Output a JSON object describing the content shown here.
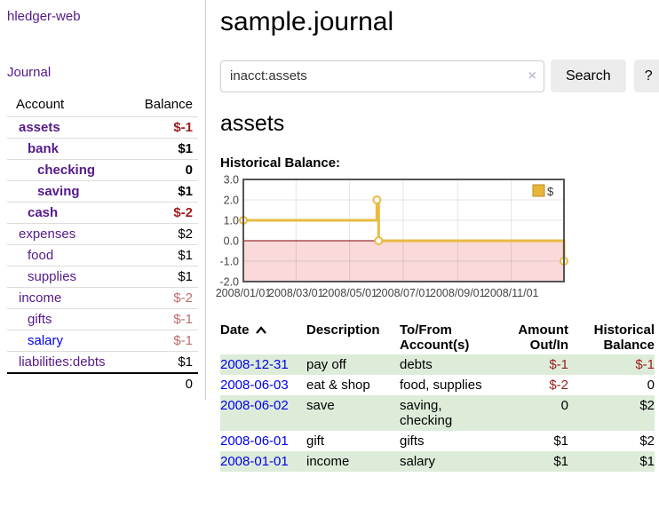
{
  "app": {
    "brand": "hledger-web",
    "nav_journal": "Journal"
  },
  "sidebar": {
    "headers": {
      "account": "Account",
      "balance": "Balance"
    },
    "accounts": [
      {
        "name": "assets",
        "indent": 1,
        "balance": "$-1",
        "bold": true,
        "neg": "strong",
        "link": "purple"
      },
      {
        "name": "bank",
        "indent": 2,
        "balance": "$1",
        "bold": true,
        "neg": "",
        "link": "purple"
      },
      {
        "name": "checking",
        "indent": 3,
        "balance": "0",
        "bold": true,
        "neg": "",
        "link": "purple"
      },
      {
        "name": "saving",
        "indent": 3,
        "balance": "$1",
        "bold": true,
        "neg": "",
        "link": "purple"
      },
      {
        "name": "cash",
        "indent": 2,
        "balance": "$-2",
        "bold": true,
        "neg": "strong",
        "link": "purple"
      },
      {
        "name": "expenses",
        "indent": 1,
        "balance": "$2",
        "bold": false,
        "neg": "",
        "link": "purple"
      },
      {
        "name": "food",
        "indent": 2,
        "balance": "$1",
        "bold": false,
        "neg": "",
        "link": "purple"
      },
      {
        "name": "supplies",
        "indent": 2,
        "balance": "$1",
        "bold": false,
        "neg": "",
        "link": "purple"
      },
      {
        "name": "income",
        "indent": 1,
        "balance": "$-2",
        "bold": false,
        "neg": "soft",
        "link": "purple"
      },
      {
        "name": "gifts",
        "indent": 2,
        "balance": "$-1",
        "bold": false,
        "neg": "soft",
        "link": "purple"
      },
      {
        "name": "salary",
        "indent": 2,
        "balance": "$-1",
        "bold": false,
        "neg": "soft",
        "link": "blue"
      },
      {
        "name": "liabilities:debts",
        "indent": 1,
        "balance": "$1",
        "bold": false,
        "neg": "",
        "link": "purple"
      }
    ],
    "total": "0"
  },
  "header": {
    "title": "sample.journal"
  },
  "search": {
    "value": "inacct:assets",
    "clear_icon": "×",
    "button_label": "Search",
    "help_label": "?"
  },
  "account_page": {
    "heading": "assets"
  },
  "chart_data": {
    "type": "line",
    "subtype": "step",
    "title": "Historical Balance:",
    "x_range": [
      "2008-01-01",
      "2008-12-31"
    ],
    "ylim": [
      -2,
      3
    ],
    "y_ticks": [
      {
        "value": 3,
        "label": "3.0"
      },
      {
        "value": 2,
        "label": "2.0"
      },
      {
        "value": 1,
        "label": "1.0"
      },
      {
        "value": 0,
        "label": "0.0"
      },
      {
        "value": -1,
        "label": "-1.0"
      },
      {
        "value": -2,
        "label": "-2.0"
      }
    ],
    "x_ticks": [
      {
        "date": "2008-01-01",
        "label": "2008/01/01"
      },
      {
        "date": "2008-03-01",
        "label": "2008/03/01"
      },
      {
        "date": "2008-05-01",
        "label": "2008/05/01"
      },
      {
        "date": "2008-07-01",
        "label": "2008/07/01"
      },
      {
        "date": "2008-09-01",
        "label": "2008/09/01"
      },
      {
        "date": "2008-11-01",
        "label": "2008/11/01"
      }
    ],
    "series": [
      {
        "name": "$",
        "points": [
          [
            "2008-01-01",
            1
          ],
          [
            "2008-06-01",
            2
          ],
          [
            "2008-06-03",
            0
          ],
          [
            "2008-12-31",
            -1
          ]
        ]
      }
    ],
    "grid": true,
    "legend_position": "top-right",
    "negative_zone": true,
    "colors": {
      "line": "#e8bb41",
      "marker_fill": "#ffffff",
      "legend_fill": "#e7b53a",
      "legend_border": "#b98e1f",
      "negative_fill": "#f9d9d9",
      "zero_line": "#7d0000",
      "border": "#555555",
      "grid": "rgba(0,0,0,0.10)"
    }
  },
  "register": {
    "columns": [
      {
        "key": "date",
        "label": "Date",
        "align": "left",
        "sort": "ascending"
      },
      {
        "key": "description",
        "label": "Description",
        "align": "left",
        "sort": ""
      },
      {
        "key": "accounts",
        "label": "To/From Account(s)",
        "align": "left",
        "sort": ""
      },
      {
        "key": "amount",
        "label": "Amount Out/In",
        "align": "right",
        "sort": ""
      },
      {
        "key": "balance",
        "label": "Historical Balance",
        "align": "right",
        "sort": ""
      }
    ],
    "rows": [
      {
        "date": "2008-12-31",
        "description": "pay off",
        "accounts": "debts",
        "amount": "$-1",
        "amount_neg": true,
        "balance": "$-1",
        "balance_neg": true
      },
      {
        "date": "2008-06-03",
        "description": "eat & shop",
        "accounts": "food, supplies",
        "amount": "$-2",
        "amount_neg": true,
        "balance": "0",
        "balance_neg": false
      },
      {
        "date": "2008-06-02",
        "description": "save",
        "accounts": "saving, checking",
        "amount": "0",
        "amount_neg": false,
        "balance": "$2",
        "balance_neg": false
      },
      {
        "date": "2008-06-01",
        "description": "gift",
        "accounts": "gifts",
        "amount": "$1",
        "amount_neg": false,
        "balance": "$2",
        "balance_neg": false
      },
      {
        "date": "2008-01-01",
        "description": "income",
        "accounts": "salary",
        "amount": "$1",
        "amount_neg": false,
        "balance": "$1",
        "balance_neg": false
      }
    ]
  }
}
